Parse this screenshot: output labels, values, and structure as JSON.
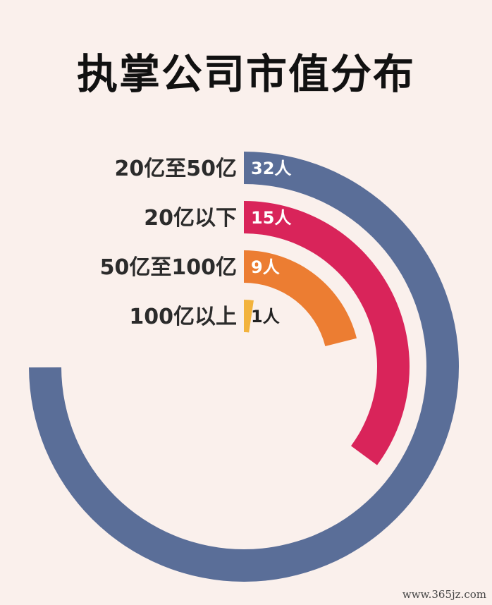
{
  "chart_data": {
    "type": "radial-bar",
    "title": "执掌公司市值分布",
    "categories": [
      "20亿至50亿",
      "20亿以下",
      "50亿至100亿",
      "100亿以上"
    ],
    "values": [
      32,
      15,
      9,
      1
    ],
    "value_labels": [
      "32人",
      "15人",
      "9人",
      "1人"
    ],
    "max_value": 32,
    "full_circle_value": 42.7,
    "colors": [
      "#5a6e98",
      "#d9245a",
      "#ec7d32",
      "#f2b33d"
    ]
  },
  "watermark": "www.365jz.com"
}
